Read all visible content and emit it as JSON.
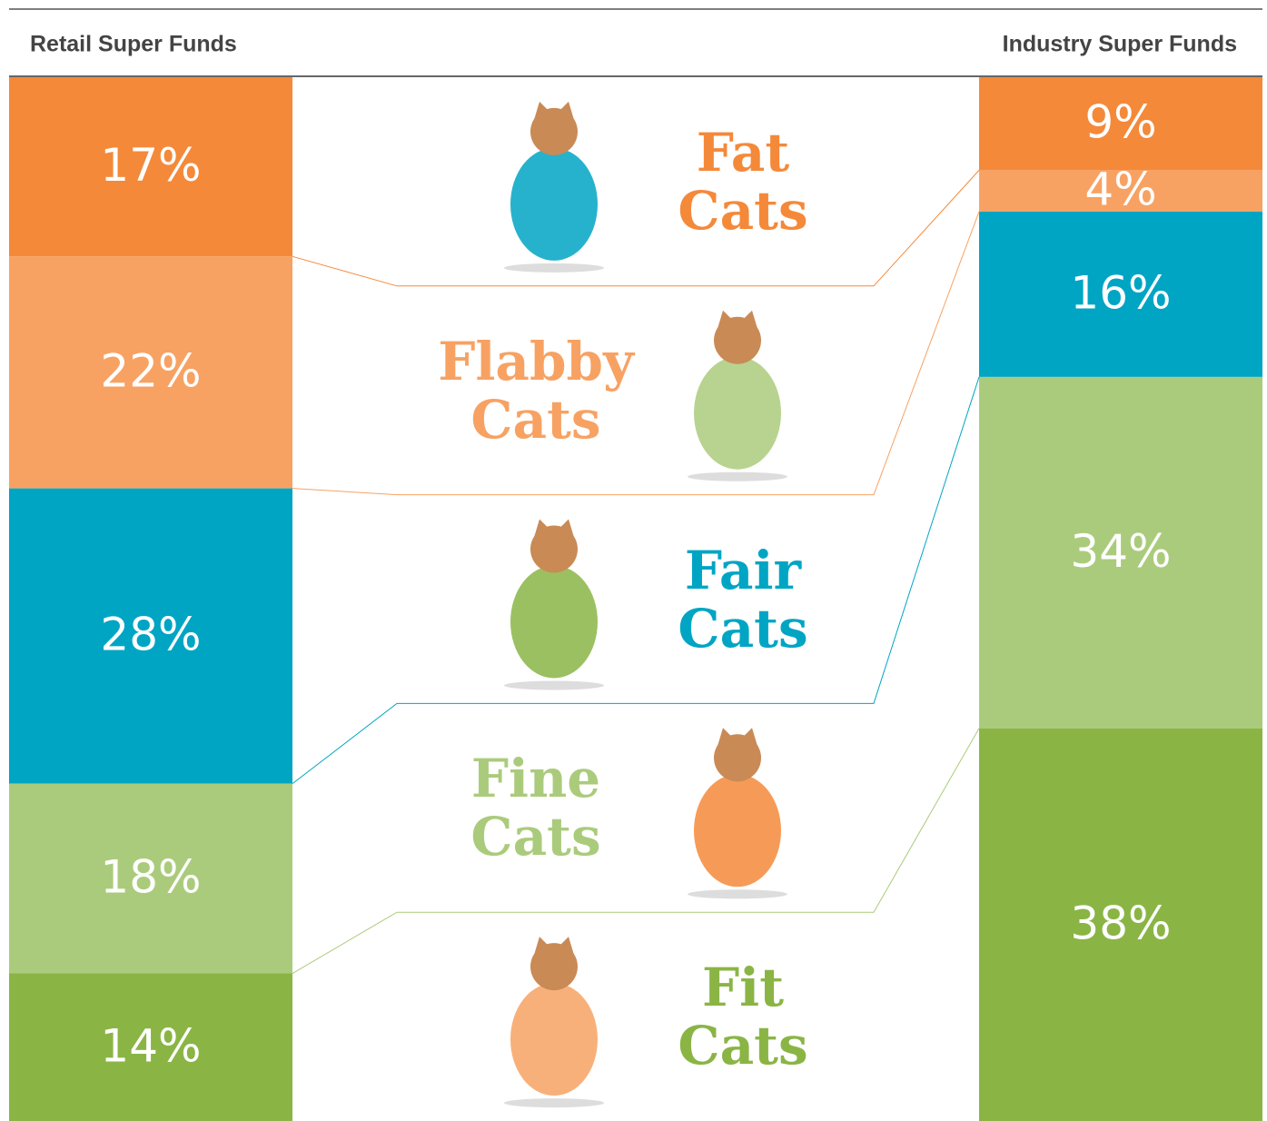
{
  "chart_data": {
    "type": "stacked_column_compare",
    "categories": [
      "Fat Cats",
      "Flabby Cats",
      "Fair Cats",
      "Fine Cats",
      "Fit Cats"
    ],
    "colors": [
      "#f4893a",
      "#f7a263",
      "#00a5c4",
      "#abcb7c",
      "#8ab545"
    ],
    "series": [
      {
        "name": "Retail Super Funds",
        "values": [
          17,
          22,
          28,
          18,
          14
        ],
        "value_labels": [
          "17%",
          "22%",
          "28%",
          "18%",
          "14%"
        ]
      },
      {
        "name": "Industry Super Funds",
        "values": [
          9,
          4,
          16,
          34,
          38
        ],
        "value_labels": [
          "9%",
          "4%",
          "16%",
          "34%",
          "38%"
        ]
      }
    ]
  }
}
